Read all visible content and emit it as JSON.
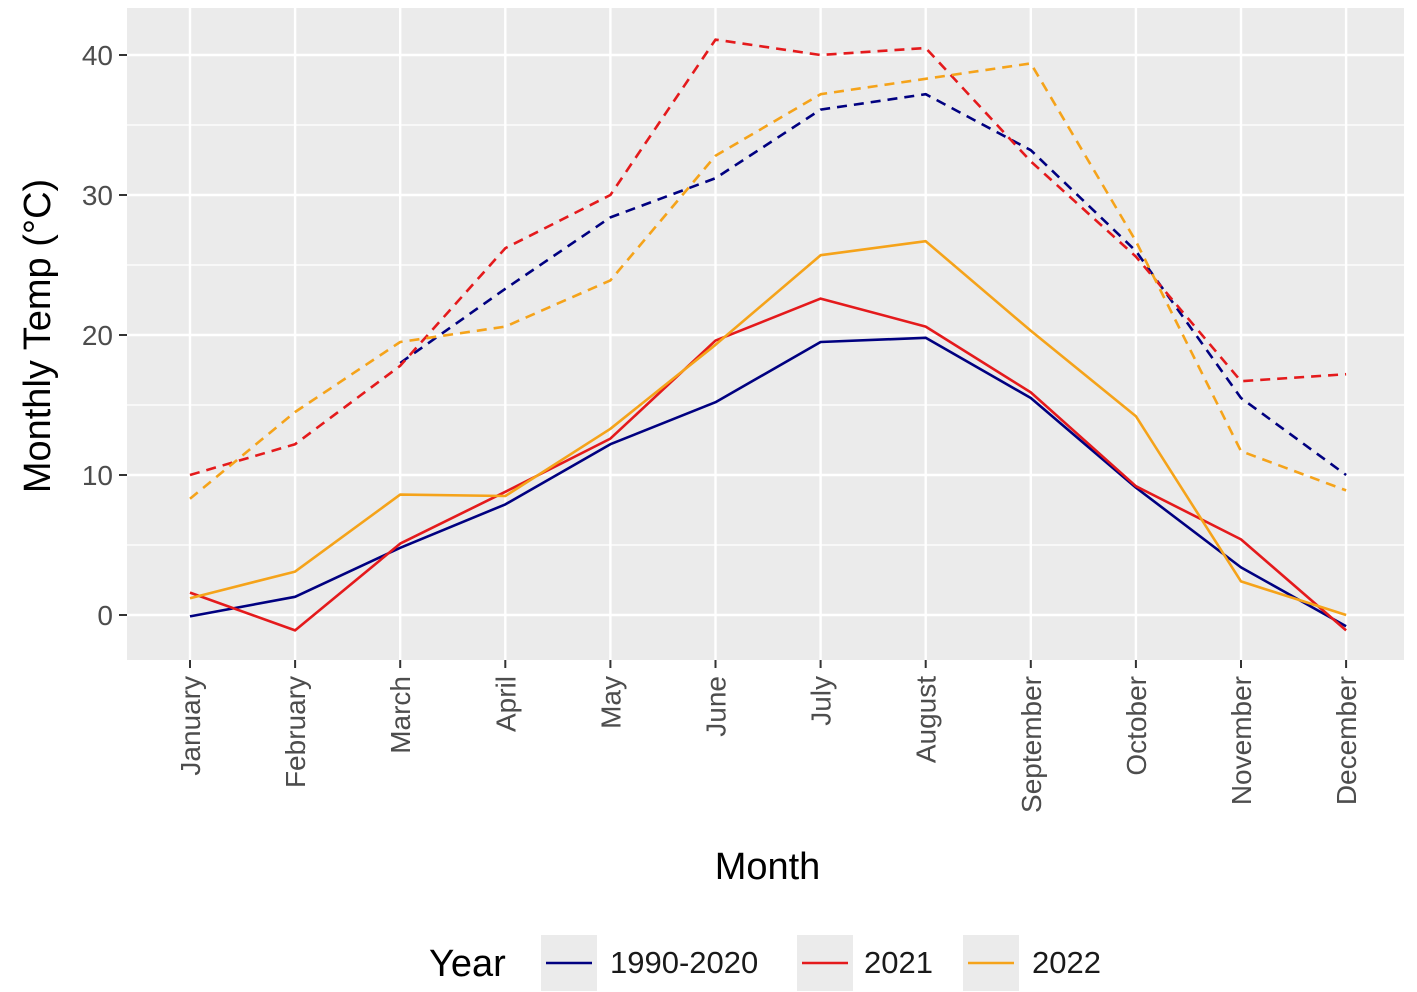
{
  "chart_data": {
    "type": "line",
    "title": "",
    "xlabel": "Month",
    "ylabel": "Monthly Temp (°C)",
    "ylim": [
      -3.2,
      42.8
    ],
    "y_ticks": [
      0,
      10,
      20,
      30,
      40
    ],
    "y_tick_labels": [
      "0",
      "10",
      "20",
      "30",
      "40"
    ],
    "categories": [
      "January",
      "February",
      "March",
      "April",
      "May",
      "June",
      "July",
      "August",
      "September",
      "October",
      "November",
      "December"
    ],
    "grid": true,
    "legend": {
      "title": "Year",
      "placement": "bottom",
      "entries": [
        {
          "name": "1990-2020",
          "color": "#000080"
        },
        {
          "name": "2021",
          "color": "#e41a1c"
        },
        {
          "name": "2022",
          "color": "#f5a31a"
        }
      ]
    },
    "series": [
      {
        "name": "1990-2020",
        "stat": "mean",
        "line_style": "solid",
        "color": "#000080",
        "values": [
          -0.1,
          1.3,
          4.8,
          7.9,
          12.2,
          15.2,
          19.5,
          19.8,
          15.5,
          9.1,
          3.4,
          -0.8
        ]
      },
      {
        "name": "2021",
        "stat": "mean",
        "line_style": "solid",
        "color": "#e41a1c",
        "values": [
          1.6,
          -1.1,
          5.1,
          8.8,
          12.6,
          19.6,
          22.6,
          20.6,
          15.9,
          9.2,
          5.4,
          -1.1
        ]
      },
      {
        "name": "2022",
        "stat": "mean",
        "line_style": "solid",
        "color": "#f5a31a",
        "values": [
          1.2,
          3.1,
          8.6,
          8.5,
          13.3,
          19.3,
          25.7,
          26.7,
          20.3,
          14.2,
          2.4,
          0.0
        ]
      },
      {
        "name": "1990-2020",
        "stat": "max",
        "line_style": "dashed",
        "color": "#000080",
        "values": [
          null,
          null,
          18.0,
          23.3,
          28.4,
          31.2,
          36.1,
          37.2,
          33.2,
          26.0,
          15.5,
          10.0
        ]
      },
      {
        "name": "2021",
        "stat": "max",
        "line_style": "dashed",
        "color": "#e41a1c",
        "values": [
          10.0,
          12.2,
          17.8,
          26.2,
          30.0,
          41.1,
          40.0,
          40.5,
          32.4,
          25.6,
          16.7,
          17.2
        ]
      },
      {
        "name": "2022",
        "stat": "max",
        "line_style": "dashed",
        "color": "#f5a31a",
        "values": [
          8.3,
          14.5,
          19.5,
          20.6,
          23.9,
          32.8,
          37.2,
          38.3,
          39.4,
          26.7,
          11.7,
          8.9
        ]
      }
    ]
  }
}
